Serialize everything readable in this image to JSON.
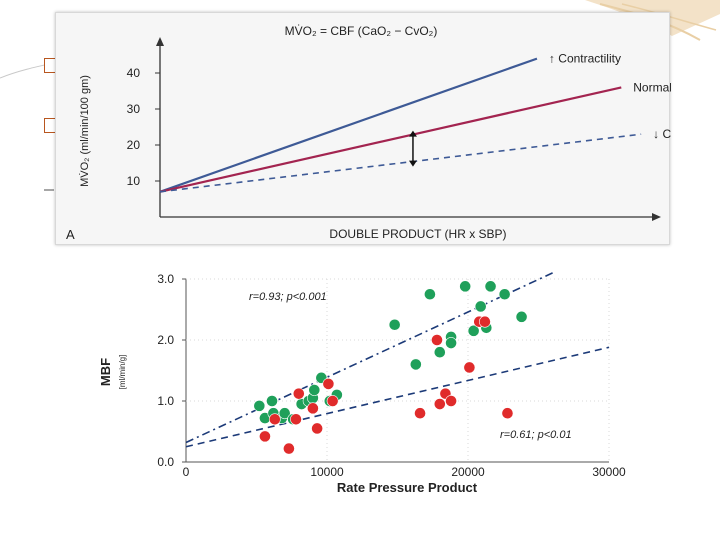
{
  "slide": {
    "theme_colors": {
      "accent": "#b8561f",
      "wave": "#e9cfa5",
      "dash": "#4c4c4c"
    }
  },
  "chart_data": [
    {
      "type": "line",
      "panel_label": "A",
      "title": "MV̇O₂ = CBF (CaO₂ − CvO₂)",
      "xlabel": "DOUBLE PRODUCT (HR x SBP)",
      "ylabel": "MV̇O₂ (ml/min/100 gm)",
      "yticks": [
        10,
        20,
        30,
        40
      ],
      "ylim": [
        0,
        50
      ],
      "xlim": [
        0,
        10
      ],
      "series": [
        {
          "name": "↑ Contractility",
          "color": "#3e5a96",
          "style": "solid",
          "x": [
            0,
            7.6
          ],
          "y": [
            7,
            44
          ]
        },
        {
          "name": "Normal",
          "color": "#a32450",
          "style": "solid",
          "x": [
            0,
            9.3
          ],
          "y": [
            7,
            36
          ]
        },
        {
          "name": "↓ Contractility",
          "color": "#3e5a96",
          "style": "dashed",
          "x": [
            0,
            9.7
          ],
          "y": [
            7,
            23
          ]
        }
      ],
      "annotation": {
        "type": "double-arrow",
        "x": 5.1,
        "y_from": 24,
        "y_to": 14
      }
    },
    {
      "type": "scatter",
      "xlabel": "Rate Pressure Product",
      "ylabel": "MBF",
      "ylabel_units": "[ml/min/g]",
      "xlim": [
        0,
        30000
      ],
      "ylim": [
        0,
        3
      ],
      "xticks": [
        0,
        10000,
        20000,
        30000
      ],
      "xtick_labels": [
        "0",
        "10000",
        "20000",
        "30000"
      ],
      "yticks": [
        0,
        1,
        2,
        3
      ],
      "ytick_labels": [
        "0.0",
        "1.0",
        "2.0",
        "3.0"
      ],
      "series": [
        {
          "name": "green",
          "color": "#1fa05a",
          "points": [
            [
              5200,
              0.92
            ],
            [
              5600,
              0.72
            ],
            [
              6200,
              0.8
            ],
            [
              6800,
              0.72
            ],
            [
              7000,
              0.8
            ],
            [
              6100,
              1.0
            ],
            [
              7600,
              0.7
            ],
            [
              8200,
              0.95
            ],
            [
              8700,
              1.0
            ],
            [
              9000,
              1.05
            ],
            [
              9100,
              1.18
            ],
            [
              9600,
              1.38
            ],
            [
              10200,
              1.0
            ],
            [
              10700,
              1.1
            ],
            [
              14800,
              2.25
            ],
            [
              16300,
              1.6
            ],
            [
              17300,
              2.75
            ],
            [
              18000,
              1.8
            ],
            [
              18800,
              2.05
            ],
            [
              18800,
              1.95
            ],
            [
              19800,
              2.88
            ],
            [
              20400,
              2.15
            ],
            [
              20900,
              2.55
            ],
            [
              21600,
              2.88
            ],
            [
              22600,
              2.75
            ],
            [
              21300,
              2.2
            ],
            [
              23800,
              2.38
            ]
          ]
        },
        {
          "name": "red",
          "color": "#e02b2b",
          "points": [
            [
              5600,
              0.42
            ],
            [
              6300,
              0.7
            ],
            [
              7300,
              0.22
            ],
            [
              7800,
              0.7
            ],
            [
              8000,
              1.12
            ],
            [
              9000,
              0.88
            ],
            [
              9300,
              0.55
            ],
            [
              10100,
              1.28
            ],
            [
              10400,
              1.0
            ],
            [
              16600,
              0.8
            ],
            [
              17800,
              2.0
            ],
            [
              18000,
              0.95
            ],
            [
              18400,
              1.12
            ],
            [
              18800,
              1.0
            ],
            [
              20100,
              1.55
            ],
            [
              20800,
              2.3
            ],
            [
              21200,
              2.3
            ],
            [
              22800,
              0.8
            ]
          ]
        }
      ],
      "fit_lines": [
        {
          "label": "r=0.93; p<0.001",
          "color": "#1c3a78",
          "style": "dashdot",
          "x": [
            0,
            26000
          ],
          "y": [
            0.32,
            3.1
          ]
        },
        {
          "label": "r=0.61; p<0.01",
          "color": "#1c3a78",
          "style": "dashed",
          "x": [
            0,
            30000
          ],
          "y": [
            0.25,
            1.88
          ]
        }
      ]
    }
  ]
}
